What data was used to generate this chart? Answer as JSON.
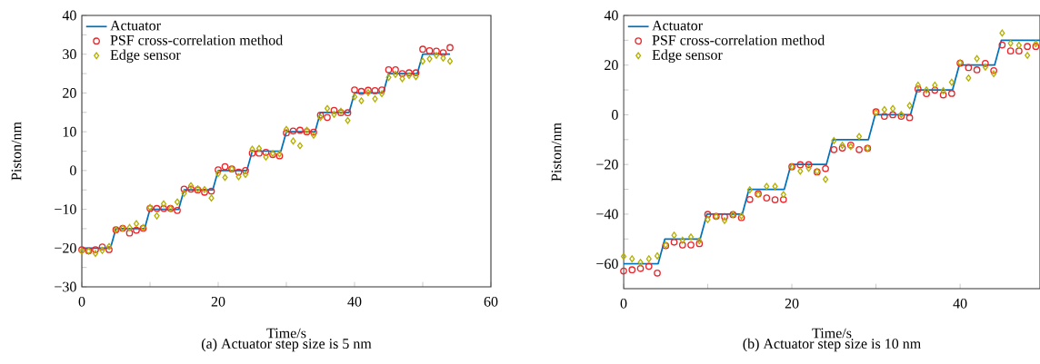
{
  "chart_data": [
    {
      "type": "line",
      "title": "(a) Actuator step size is 5 nm",
      "xlabel": "Time/s",
      "ylabel": "Piston/nm",
      "x": [
        0,
        1,
        2,
        3,
        4,
        5,
        6,
        7,
        8,
        9,
        10,
        11,
        12,
        13,
        14,
        15,
        16,
        17,
        18,
        19,
        20,
        21,
        22,
        23,
        24,
        25,
        26,
        27,
        28,
        29,
        30,
        31,
        32,
        33,
        34,
        35,
        36,
        37,
        38,
        39,
        40,
        41,
        42,
        43,
        44,
        45,
        46,
        47,
        48,
        49,
        50,
        51,
        52,
        53,
        54
      ],
      "series": [
        {
          "name": "Actuator",
          "marker": "none",
          "color": "#0072bd",
          "x": [
            0,
            4.2,
            5,
            9.2,
            10,
            14.2,
            15,
            19.2,
            20,
            24.2,
            25,
            29.2,
            30,
            34.2,
            35,
            39.2,
            40,
            44.2,
            45,
            49.2,
            50,
            54
          ],
          "values": [
            -20,
            -20,
            -15,
            -15,
            -10,
            -10,
            -5,
            -5,
            0,
            0,
            5,
            5,
            10,
            10,
            15,
            15,
            20,
            20,
            25,
            25,
            30,
            30
          ]
        },
        {
          "name": "PSF cross-correlation method",
          "type": "scatter",
          "marker": "circle",
          "color": "#e8262b",
          "values": [
            -20.4,
            -20.7,
            -20.4,
            -19.7,
            -20.4,
            -15.3,
            -14.9,
            -16.1,
            -15.4,
            -14.9,
            -9.8,
            -9.8,
            -9.8,
            -9.8,
            -10.3,
            -4.8,
            -4.8,
            -5,
            -5.6,
            -5.3,
            0.2,
            1,
            0.4,
            -0.4,
            0,
            4.5,
            4.5,
            4.7,
            4.1,
            3.8,
            9.7,
            10.2,
            10.4,
            10,
            9.9,
            14.3,
            13.7,
            15.5,
            14.9,
            14.9,
            20.8,
            20.4,
            20.7,
            20.6,
            20.8,
            26,
            26,
            25,
            25.2,
            25.2,
            31.3,
            30.9,
            30.8,
            30.4,
            31.7
          ]
        },
        {
          "name": "Edge sensor",
          "type": "scatter",
          "marker": "diamond",
          "color": "#b4b000",
          "values": [
            -20.8,
            -20.8,
            -21.4,
            -20.6,
            -19.6,
            -15.3,
            -14.9,
            -14.7,
            -13.7,
            -14.7,
            -9.5,
            -11.7,
            -8.6,
            -9.8,
            -8.1,
            -5.9,
            -3.9,
            -4.7,
            -4.9,
            -7.1,
            -0.8,
            -1.8,
            0.4,
            -1.6,
            -1,
            5.5,
            5.7,
            3.5,
            4.4,
            4.3,
            10.6,
            7.6,
            6.4,
            10.4,
            9.1,
            13.7,
            16,
            14.5,
            15.3,
            12.9,
            19,
            18,
            20.1,
            18.5,
            19.8,
            24,
            24.8,
            23.7,
            24.5,
            24.2,
            28.2,
            28.8,
            29.7,
            29,
            28.2
          ]
        }
      ],
      "xlim": [
        0,
        60
      ],
      "ylim": [
        -30,
        40
      ],
      "xticks": [
        0,
        {
          "value": 10,
          "label": null
        },
        20,
        {
          "value": 30,
          "label": null
        },
        40,
        {
          "value": 50,
          "label": null
        },
        60
      ],
      "yticks": [
        {
          "value": -30,
          "label": "−30"
        },
        {
          "value": -25,
          "label": null
        },
        {
          "value": -20,
          "label": "−20"
        },
        {
          "value": -15,
          "label": null
        },
        {
          "value": -10,
          "label": "−10"
        },
        {
          "value": -5,
          "label": null
        },
        0,
        {
          "value": 5,
          "label": null
        },
        10,
        {
          "value": 15,
          "label": null
        },
        20,
        {
          "value": 25,
          "label": null
        },
        30,
        {
          "value": 35,
          "label": null
        },
        40
      ],
      "legend": "top left",
      "grid": false
    },
    {
      "type": "line",
      "title": "(b) Actuator step size is 10 nm",
      "xlabel": "Time/s",
      "ylabel": "Piston/nm",
      "x": [
        0,
        1,
        2,
        3,
        4,
        5,
        6,
        7,
        8,
        9,
        10,
        11,
        12,
        13,
        14,
        15,
        16,
        17,
        18,
        19,
        20,
        21,
        22,
        23,
        24,
        25,
        26,
        27,
        28,
        29,
        30,
        31,
        32,
        33,
        34,
        35,
        36,
        37,
        38,
        39,
        40,
        41,
        42,
        43,
        44,
        45,
        46,
        47,
        48,
        49
      ],
      "series": [
        {
          "name": "Actuator",
          "marker": "none",
          "color": "#0072bd",
          "x": [
            0,
            4.1,
            4.9,
            9.1,
            9.9,
            14.1,
            14.9,
            19.1,
            19.9,
            24.1,
            24.9,
            29.1,
            29.9,
            34.1,
            34.9,
            39.1,
            39.9,
            44.1,
            44.9,
            49.5
          ],
          "values": [
            -60,
            -60,
            -50,
            -50,
            -40,
            -40,
            -30,
            -30,
            -20,
            -20,
            -10,
            -10,
            0,
            0,
            10,
            10,
            20,
            20,
            30,
            30
          ]
        },
        {
          "name": "PSF cross-correlation method",
          "type": "scatter",
          "marker": "circle",
          "color": "#e8262b",
          "values": [
            -62.9,
            -62.4,
            -61.9,
            -61,
            -63.7,
            -52.7,
            -51.3,
            -52.4,
            -52.4,
            -51.9,
            -40.1,
            -40.9,
            -41,
            -40.2,
            -41.4,
            -34.1,
            -31.8,
            -33.5,
            -34.2,
            -34.1,
            -20.9,
            -20.1,
            -20.1,
            -23,
            -21.7,
            -14,
            -13.4,
            -12.2,
            -14,
            -13.5,
            1.2,
            -0.6,
            0,
            -0.6,
            -1.2,
            10.4,
            8.5,
            9.9,
            8,
            8.6,
            20.8,
            19,
            18.1,
            20.7,
            17.8,
            28.1,
            25.7,
            25.7,
            27.5,
            27.5
          ]
        },
        {
          "name": "Edge sensor",
          "type": "scatter",
          "marker": "diamond",
          "color": "#b4b000",
          "values": [
            -57,
            -58,
            -59.4,
            -58,
            -56.8,
            -52.4,
            -48.5,
            -50.5,
            -49.2,
            -50.7,
            -42.2,
            -40.9,
            -42.6,
            -40.2,
            -40.7,
            -30.2,
            -32.1,
            -28.8,
            -28.8,
            -32.1,
            -20.9,
            -22.7,
            -21.6,
            -22.8,
            -26,
            -10.4,
            -12.3,
            -12.8,
            -8.7,
            -13.5,
            0.9,
            2.1,
            2.5,
            0.1,
            3.7,
            11.9,
            10,
            11.9,
            9.7,
            13.1,
            21,
            14.8,
            22.6,
            19.2,
            16.5,
            32.9,
            28.8,
            28,
            23.9,
            28.6
          ]
        }
      ],
      "xlim": [
        0,
        49.5
      ],
      "ylim": [
        -70,
        40
      ],
      "xticks": [
        0,
        {
          "value": 10,
          "label": null
        },
        20,
        {
          "value": 30,
          "label": null
        },
        40
      ],
      "yticks": [
        {
          "value": -60,
          "label": "−60"
        },
        {
          "value": -50,
          "label": null
        },
        {
          "value": -40,
          "label": "−40"
        },
        {
          "value": -30,
          "label": null
        },
        {
          "value": -20,
          "label": "−20"
        },
        {
          "value": -10,
          "label": null
        },
        0,
        {
          "value": 10,
          "label": null
        },
        20,
        {
          "value": 30,
          "label": null
        },
        40
      ],
      "legend": "top left",
      "grid": false
    }
  ]
}
